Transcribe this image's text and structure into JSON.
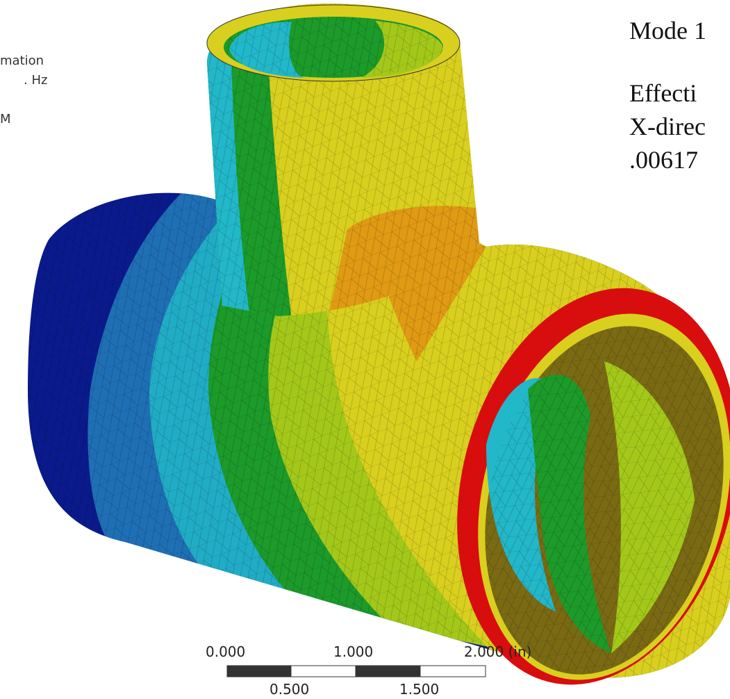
{
  "legend": {
    "line1": "mation",
    "line2": ". Hz",
    "line3": "M"
  },
  "mode_info": {
    "title": "Mode 1",
    "effective_label": "Effecti",
    "direction_label": "X-direc",
    "value": ".00617"
  },
  "scale_bar": {
    "top_labels": [
      "0.000",
      "1.000",
      "2.000 (in)"
    ],
    "bottom_labels": [
      "0.500",
      "1.500"
    ]
  },
  "colors": {
    "band_blue": "#0a1a8c",
    "band_lightblue": "#1f6fb5",
    "band_cyan": "#22b7c9",
    "band_green": "#1c9a2a",
    "band_lime": "#a4c81a",
    "band_yellow": "#d9cf1e",
    "band_orange": "#e09a14",
    "band_red": "#d80d0d"
  }
}
